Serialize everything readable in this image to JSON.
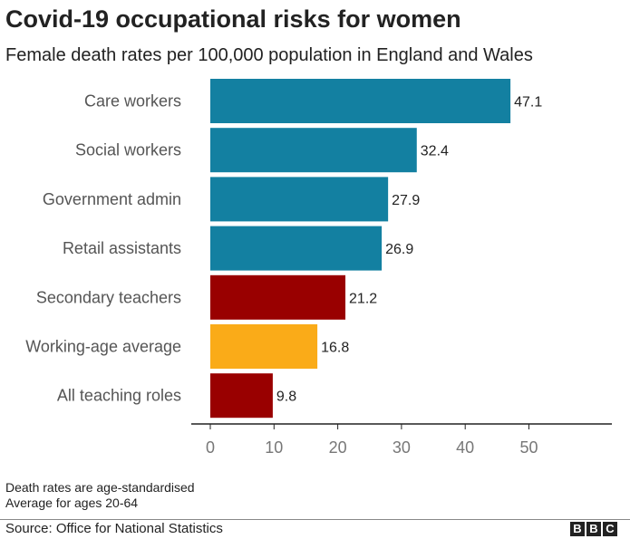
{
  "chart_data": {
    "type": "bar",
    "orientation": "horizontal",
    "title": "Covid-19 occupational risks for women",
    "subtitle": "Female death rates per 100,000 population in England and Wales",
    "categories": [
      "Care workers",
      "Social workers",
      "Government admin",
      "Retail assistants",
      "Secondary teachers",
      "Working-age average",
      "All teaching roles"
    ],
    "values": [
      47.1,
      32.4,
      27.9,
      26.9,
      21.2,
      16.8,
      9.8
    ],
    "value_labels": [
      "47.1",
      "32.4",
      "27.9",
      "26.9",
      "21.2",
      "16.8",
      "9.8"
    ],
    "colors": [
      "#1380A1",
      "#1380A1",
      "#1380A1",
      "#1380A1",
      "#990000",
      "#FAAB18",
      "#990000"
    ],
    "xticks": [
      0,
      10,
      20,
      30,
      40,
      50
    ],
    "xtick_labels": [
      "0",
      "10",
      "20",
      "30",
      "40",
      "50"
    ],
    "xlim": [
      -3,
      63
    ],
    "grid": false
  },
  "notes": [
    "Death rates are age-standardised",
    "Average for ages 20-64"
  ],
  "source": "Source: Office for National Statistics",
  "logo": [
    "B",
    "B",
    "C"
  ]
}
